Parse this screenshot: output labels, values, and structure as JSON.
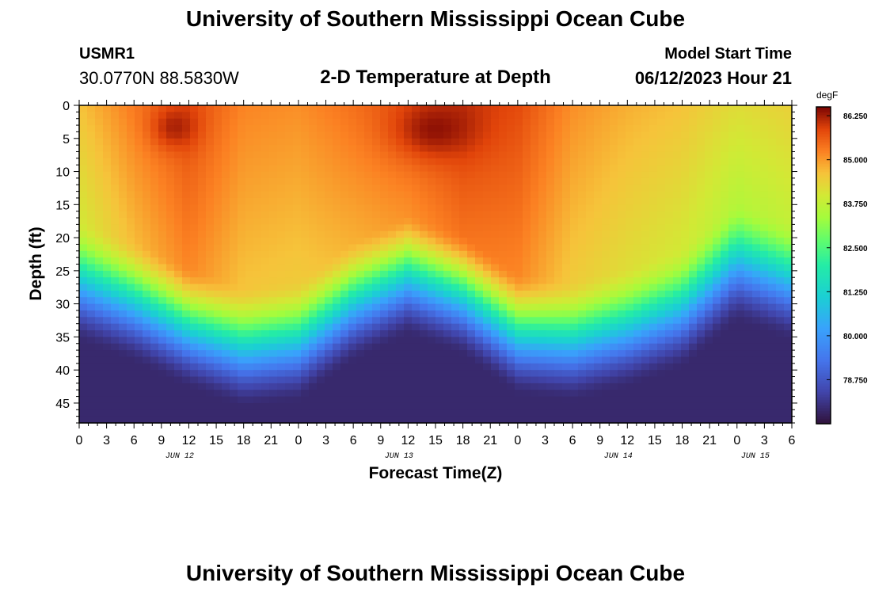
{
  "header": {
    "title": "University of Southern Mississippi Ocean Cube",
    "station": "USMR1",
    "coords": "30.0770N  88.5830W",
    "subtitle": "2-D Temperature at Depth",
    "model_label": "Model Start Time",
    "model_time": "06/12/2023 Hour 21"
  },
  "footer": {
    "title": "University of Southern Mississippi Ocean Cube"
  },
  "chart_data": {
    "type": "heatmap",
    "title": "2-D Temperature at Depth",
    "xlabel": "Forecast Time(Z)",
    "ylabel": "Depth (ft)",
    "units": "degF",
    "x_range_hours": [
      0,
      78
    ],
    "y_range_ft": [
      0,
      48
    ],
    "x_ticks": [
      "0",
      "3",
      "6",
      "9",
      "12",
      "15",
      "18",
      "21",
      "0",
      "3",
      "6",
      "9",
      "12",
      "15",
      "18",
      "21",
      "0",
      "3",
      "6",
      "9",
      "12",
      "15",
      "18",
      "21",
      "0",
      "3",
      "6"
    ],
    "y_ticks": [
      "0",
      "5",
      "10",
      "15",
      "20",
      "25",
      "30",
      "35",
      "40",
      "45"
    ],
    "y_tick_values": [
      0,
      5,
      10,
      15,
      20,
      25,
      30,
      35,
      40,
      45
    ],
    "date_labels": [
      {
        "label": "JUN 12",
        "hour": 11
      },
      {
        "label": "JUN 13",
        "hour": 35
      },
      {
        "label": "JUN 14",
        "hour": 59
      },
      {
        "label": "JUN 15",
        "hour": 74
      }
    ],
    "colorbar": {
      "min": 77.5,
      "max": 86.5,
      "ticks": [
        "86.250",
        "85.000",
        "83.750",
        "82.500",
        "81.250",
        "80.000",
        "78.750"
      ],
      "tick_values": [
        86.25,
        85.0,
        83.75,
        82.5,
        81.25,
        80.0,
        78.75
      ]
    },
    "surface_temp_degF": [
      84.6,
      85.3,
      85.8,
      85.2,
      85.1,
      85.4,
      85.7,
      86.0,
      85.8,
      85.1,
      84.8,
      84.6,
      84.2,
      84.4
    ],
    "thermocline_depth_ft": [
      24,
      27,
      31,
      34,
      33,
      27,
      23,
      26,
      32,
      33,
      31,
      28,
      21,
      24
    ],
    "warm_cores": [
      {
        "hour": 10.5,
        "depth_ft": 3.5,
        "temp_degF": 86.3
      },
      {
        "hour": 39,
        "depth_ft": 4,
        "temp_degF": 86.5
      }
    ]
  }
}
